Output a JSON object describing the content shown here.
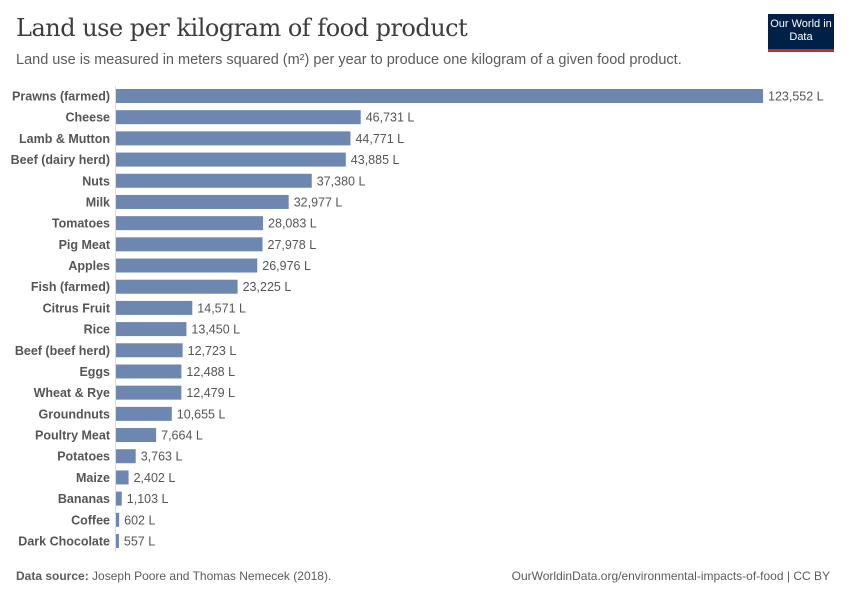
{
  "header": {
    "title": "Land use per kilogram of food product",
    "subtitle": "Land use is measured in meters squared (m²) per year to produce one kilogram of a given food product.",
    "logo": "Our World in Data"
  },
  "footer": {
    "source_label": "Data source:",
    "source": "Joseph Poore and Thomas Nemecek (2018).",
    "url": "OurWorldinData.org/environmental-impacts-of-food | CC BY"
  },
  "colors": {
    "bar": "#6D87B0",
    "text": "#5b5b5b",
    "logo_bg": "#002147",
    "logo_accent": "#ce261e"
  },
  "chart_data": {
    "type": "bar",
    "orientation": "horizontal",
    "unit_suffix": " L",
    "categories": [
      "Prawns (farmed)",
      "Cheese",
      "Lamb & Mutton",
      "Beef (dairy herd)",
      "Nuts",
      "Milk",
      "Tomatoes",
      "Pig Meat",
      "Apples",
      "Fish (farmed)",
      "Citrus Fruit",
      "Rice",
      "Beef (beef herd)",
      "Eggs",
      "Wheat & Rye",
      "Groundnuts",
      "Poultry Meat",
      "Potatoes",
      "Maize",
      "Bananas",
      "Coffee",
      "Dark Chocolate"
    ],
    "values": [
      123552,
      46731,
      44771,
      43885,
      37380,
      32977,
      28083,
      27978,
      26976,
      23225,
      14571,
      13450,
      12723,
      12488,
      12479,
      10655,
      7664,
      3763,
      2402,
      1103,
      602,
      557
    ],
    "labels": [
      "123,552 L",
      "46,731 L",
      "44,771 L",
      "43,885 L",
      "37,380 L",
      "32,977 L",
      "28,083 L",
      "27,978 L",
      "26,976 L",
      "23,225 L",
      "14,571 L",
      "13,450 L",
      "12,723 L",
      "12,488 L",
      "12,479 L",
      "10,655 L",
      "7,664 L",
      "3,763 L",
      "2,402 L",
      "1,103 L",
      "602 L",
      "557 L"
    ],
    "title": "Land use per kilogram of food product",
    "xlabel": "",
    "ylabel": "",
    "grid": false
  }
}
